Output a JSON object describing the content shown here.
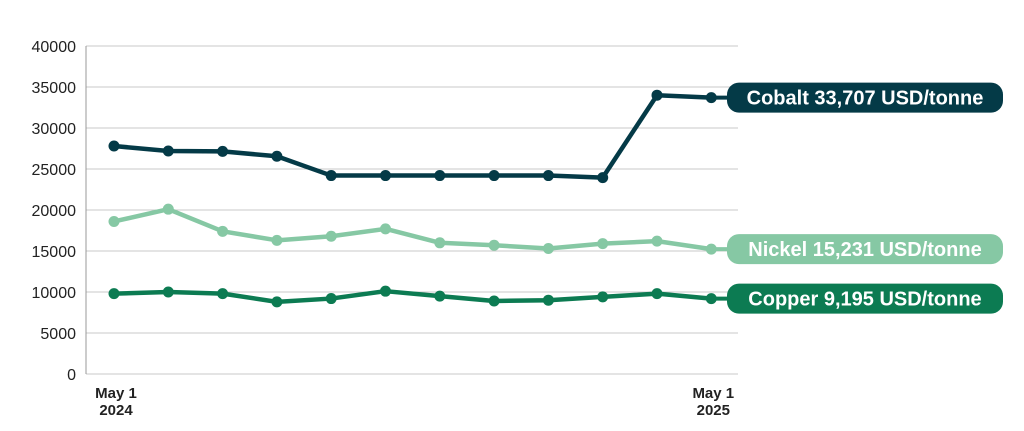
{
  "chart_data": {
    "type": "line",
    "title": "",
    "xlabel": "",
    "ylabel": "",
    "ylim": [
      0,
      40000
    ],
    "yticks": [
      0,
      5000,
      10000,
      15000,
      20000,
      25000,
      30000,
      35000,
      40000
    ],
    "x_tick_labels": [
      {
        "index": 0,
        "line1": "May 1",
        "line2": "2024"
      },
      {
        "index": 12,
        "line1": "May 1",
        "line2": "2025"
      }
    ],
    "grid": true,
    "legend": "right-end labels",
    "series": [
      {
        "name": "Cobalt",
        "label": "Cobalt 33,707 USD/tonne",
        "color": "#043a47",
        "values": [
          27800,
          27200,
          27150,
          26550,
          24200,
          24200,
          24200,
          24200,
          24200,
          23950,
          34000,
          33707
        ]
      },
      {
        "name": "Nickel",
        "label": "Nickel 15,231 USD/tonne",
        "color": "#86c8a4",
        "values": [
          18600,
          20100,
          17400,
          16300,
          16800,
          17700,
          16000,
          15700,
          15300,
          15900,
          16200,
          15231
        ]
      },
      {
        "name": "Copper",
        "label": "Copper 9,195 USD/tonne",
        "color": "#0c7b52",
        "values": [
          9800,
          10000,
          9800,
          8800,
          9200,
          10100,
          9500,
          8900,
          9000,
          9400,
          9800,
          9195
        ]
      }
    ]
  }
}
